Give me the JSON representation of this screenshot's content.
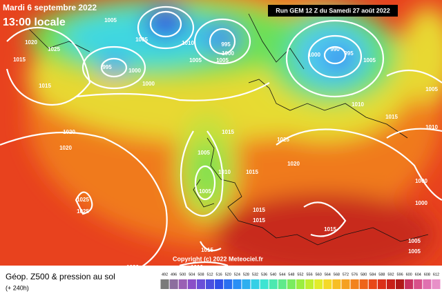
{
  "header": {
    "date": "Mardi 6 septembre 2022",
    "time": "13:00 locale",
    "run": "Run GEM 12 Z du Samedi 27 août 2022"
  },
  "copyright": "Copyright (c) 2022 Meteociel.fr",
  "legend": {
    "title": "Géop. Z500 & pression au sol",
    "subtitle": "(+ 240h)"
  },
  "pressure_labels": [
    "1020",
    "1025",
    "1015",
    "1015",
    "1020",
    "1020",
    "1025",
    "1025",
    "1005",
    "995",
    "1000",
    "1000",
    "1005",
    "1010",
    "995",
    "1000",
    "1005",
    "1005",
    "1000",
    "990",
    "995",
    "1005",
    "1010",
    "1015",
    "1015",
    "1025",
    "1020",
    "1005",
    "1010",
    "1015",
    "1005",
    "1015",
    "1015",
    "1015",
    "1000",
    "1000",
    "1005",
    "1005",
    "1015",
    "1020",
    "1010",
    "1005",
    "1010"
  ],
  "scale": [
    {
      "label": 492,
      "color": "#7a7a7a"
    },
    {
      "label": 496,
      "color": "#8c6e9e"
    },
    {
      "label": 500,
      "color": "#9a5fb4"
    },
    {
      "label": 504,
      "color": "#8a4fc8"
    },
    {
      "label": 508,
      "color": "#6a4fd8"
    },
    {
      "label": 512,
      "color": "#4a50e0"
    },
    {
      "label": 516,
      "color": "#2f4fe8"
    },
    {
      "label": 520,
      "color": "#2a6ff0"
    },
    {
      "label": 524,
      "color": "#2a8ff5"
    },
    {
      "label": 528,
      "color": "#2fafef"
    },
    {
      "label": 532,
      "color": "#35cfe6"
    },
    {
      "label": 536,
      "color": "#3ee4d2"
    },
    {
      "label": 540,
      "color": "#4de8b0"
    },
    {
      "label": 544,
      "color": "#5fea8a"
    },
    {
      "label": 548,
      "color": "#7aec5e"
    },
    {
      "label": 552,
      "color": "#9bee40"
    },
    {
      "label": 556,
      "color": "#c0ef30"
    },
    {
      "label": 560,
      "color": "#e2ec2a"
    },
    {
      "label": 564,
      "color": "#f5d928"
    },
    {
      "label": 568,
      "color": "#f7be24"
    },
    {
      "label": 572,
      "color": "#f5a020"
    },
    {
      "label": 576,
      "color": "#f2821d"
    },
    {
      "label": 580,
      "color": "#ee641a"
    },
    {
      "label": 584,
      "color": "#e84818"
    },
    {
      "label": 588,
      "color": "#db3018"
    },
    {
      "label": 592,
      "color": "#c82018"
    },
    {
      "label": 596,
      "color": "#b01818"
    },
    {
      "label": 600,
      "color": "#c83060"
    },
    {
      "label": 604,
      "color": "#d8508a"
    },
    {
      "label": 608,
      "color": "#e070b0"
    },
    {
      "label": 612,
      "color": "#e890c8"
    }
  ]
}
